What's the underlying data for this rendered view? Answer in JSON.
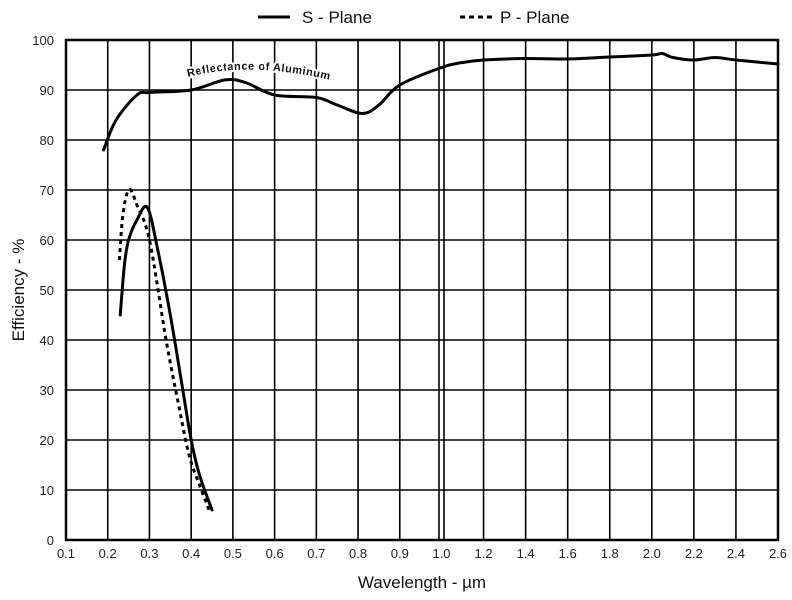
{
  "chart_data": {
    "type": "line",
    "title": "",
    "xlabel": "Wavelength - µm",
    "ylabel": "Efficiency - %",
    "xlim": [
      0.1,
      2.6
    ],
    "ylim": [
      0,
      100
    ],
    "grid": true,
    "x_scale_note": "piecewise: 0.1 step ticks up to 1.0, 0.2 step ticks from 1.0 to 2.6",
    "x_ticks": [
      "0.1",
      "0.2",
      "0.3",
      "0.4",
      "0.5",
      "0.6",
      "0.7",
      "0.8",
      "0.9",
      "1.0",
      "1.2",
      "1.4",
      "1.6",
      "1.8",
      "2.0",
      "2.2",
      "2.4",
      "2.6"
    ],
    "y_ticks": [
      "0",
      "10",
      "20",
      "30",
      "40",
      "50",
      "60",
      "70",
      "80",
      "90",
      "100"
    ],
    "legend": {
      "position": "top",
      "entries": [
        "S - Plane",
        "P - Plane"
      ]
    },
    "annotation": "Reflectance of Aluminum",
    "series": [
      {
        "name": "S - Plane",
        "style": "solid",
        "color": "#000000",
        "x": [
          0.23,
          0.24,
          0.25,
          0.27,
          0.295,
          0.32,
          0.35,
          0.38,
          0.4,
          0.42,
          0.45
        ],
        "y": [
          45,
          55,
          60,
          64,
          66.5,
          58,
          45,
          30,
          20,
          13,
          6
        ]
      },
      {
        "name": "P - Plane",
        "style": "dashed",
        "color": "#000000",
        "x": [
          0.228,
          0.235,
          0.245,
          0.255,
          0.27,
          0.3,
          0.34,
          0.37,
          0.395,
          0.42,
          0.443
        ],
        "y": [
          56,
          64,
          69,
          70,
          67,
          60,
          40,
          27,
          17,
          11,
          6
        ]
      },
      {
        "name": "Reflectance of Aluminum",
        "style": "solid",
        "color": "#000000",
        "x": [
          0.19,
          0.22,
          0.27,
          0.3,
          0.4,
          0.48,
          0.53,
          0.6,
          0.7,
          0.75,
          0.81,
          0.85,
          0.9,
          1.0,
          1.1,
          1.2,
          1.4,
          1.6,
          1.8,
          2.0,
          2.05,
          2.1,
          2.2,
          2.3,
          2.4,
          2.6
        ],
        "y": [
          78,
          84,
          89,
          89.5,
          90,
          92,
          91.5,
          89,
          88.5,
          87,
          85.3,
          87,
          91,
          94.5,
          95.5,
          96,
          96.3,
          96.2,
          96.6,
          97,
          97.3,
          96.5,
          96,
          96.5,
          96,
          95.2
        ]
      }
    ]
  }
}
